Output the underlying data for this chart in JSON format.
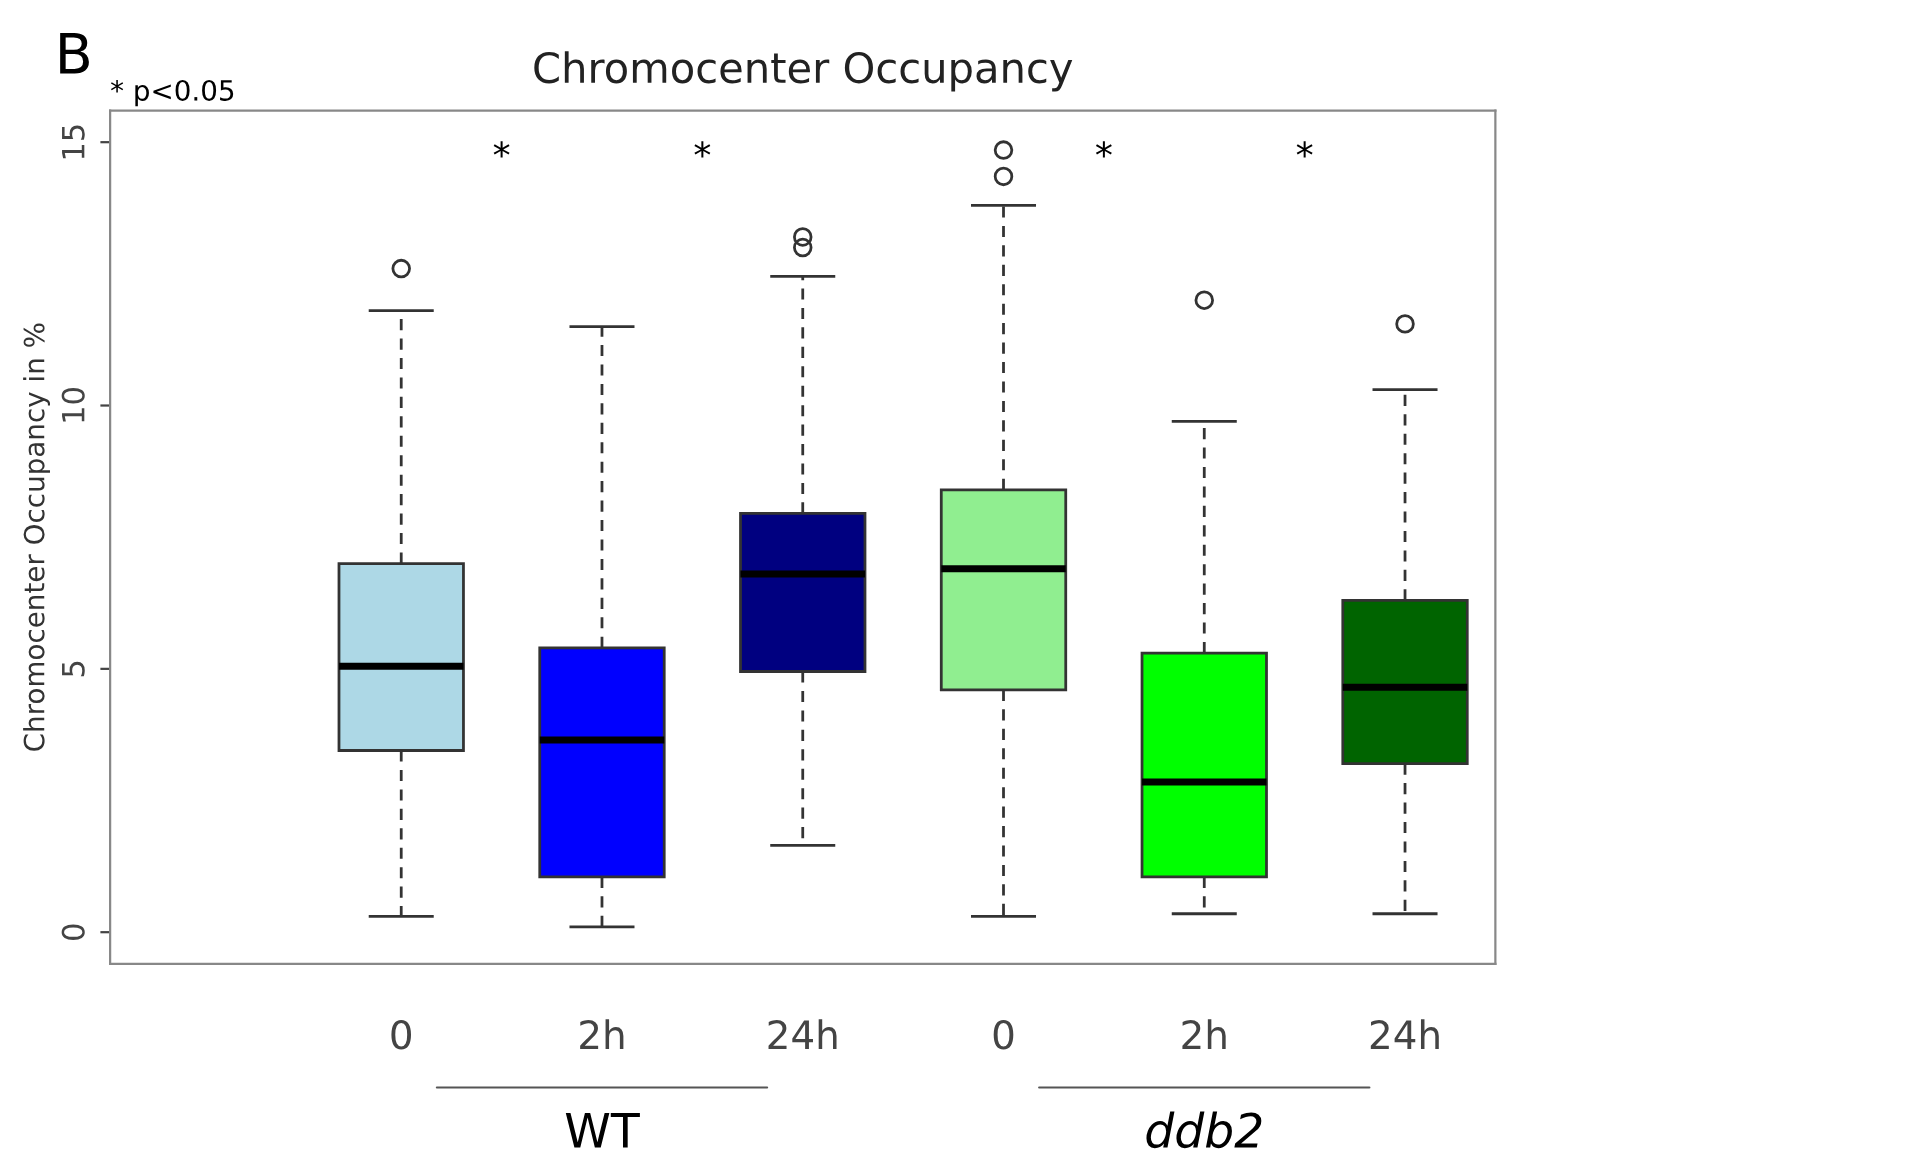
{
  "chart_data": {
    "type": "box",
    "title": "Chromocenter Occupancy",
    "ylabel": "Chromocenter Occupancy in %",
    "categories": [
      "0",
      "2h",
      "24h",
      "0",
      "2h",
      "24h"
    ],
    "colors": [
      "#add8e6",
      "#0000ff",
      "#000080",
      "#90ee90",
      "#00ff00",
      "#006400"
    ],
    "boxes": [
      {
        "low": 0.3,
        "q1": 3.45,
        "median": 5.05,
        "q3": 7.0,
        "high": 11.8,
        "outliers": [
          12.6
        ]
      },
      {
        "low": 0.1,
        "q1": 1.05,
        "median": 3.65,
        "q3": 5.4,
        "high": 11.5
      },
      {
        "low": 1.65,
        "q1": 4.95,
        "median": 6.8,
        "q3": 7.95,
        "high": 12.45,
        "outliers": [
          13.0,
          13.2
        ]
      },
      {
        "low": 0.3,
        "q1": 4.6,
        "median": 6.9,
        "q3": 8.4,
        "high": 13.8,
        "outliers": [
          14.35,
          14.85
        ]
      },
      {
        "low": 0.35,
        "q1": 1.05,
        "median": 2.85,
        "q3": 5.3,
        "high": 9.7,
        "outliers": [
          12.0
        ]
      },
      {
        "low": 0.35,
        "q1": 3.2,
        "median": 4.65,
        "q3": 6.3,
        "high": 10.3,
        "outliers": [
          11.55
        ]
      }
    ],
    "ylim": [
      -0.6,
      15.6
    ],
    "yticks": [
      0,
      5,
      10,
      15
    ],
    "grid": false,
    "annotations": [
      "B",
      "* p<0.05",
      "*",
      "*",
      "*",
      "*",
      "WT",
      "ddb2"
    ]
  }
}
